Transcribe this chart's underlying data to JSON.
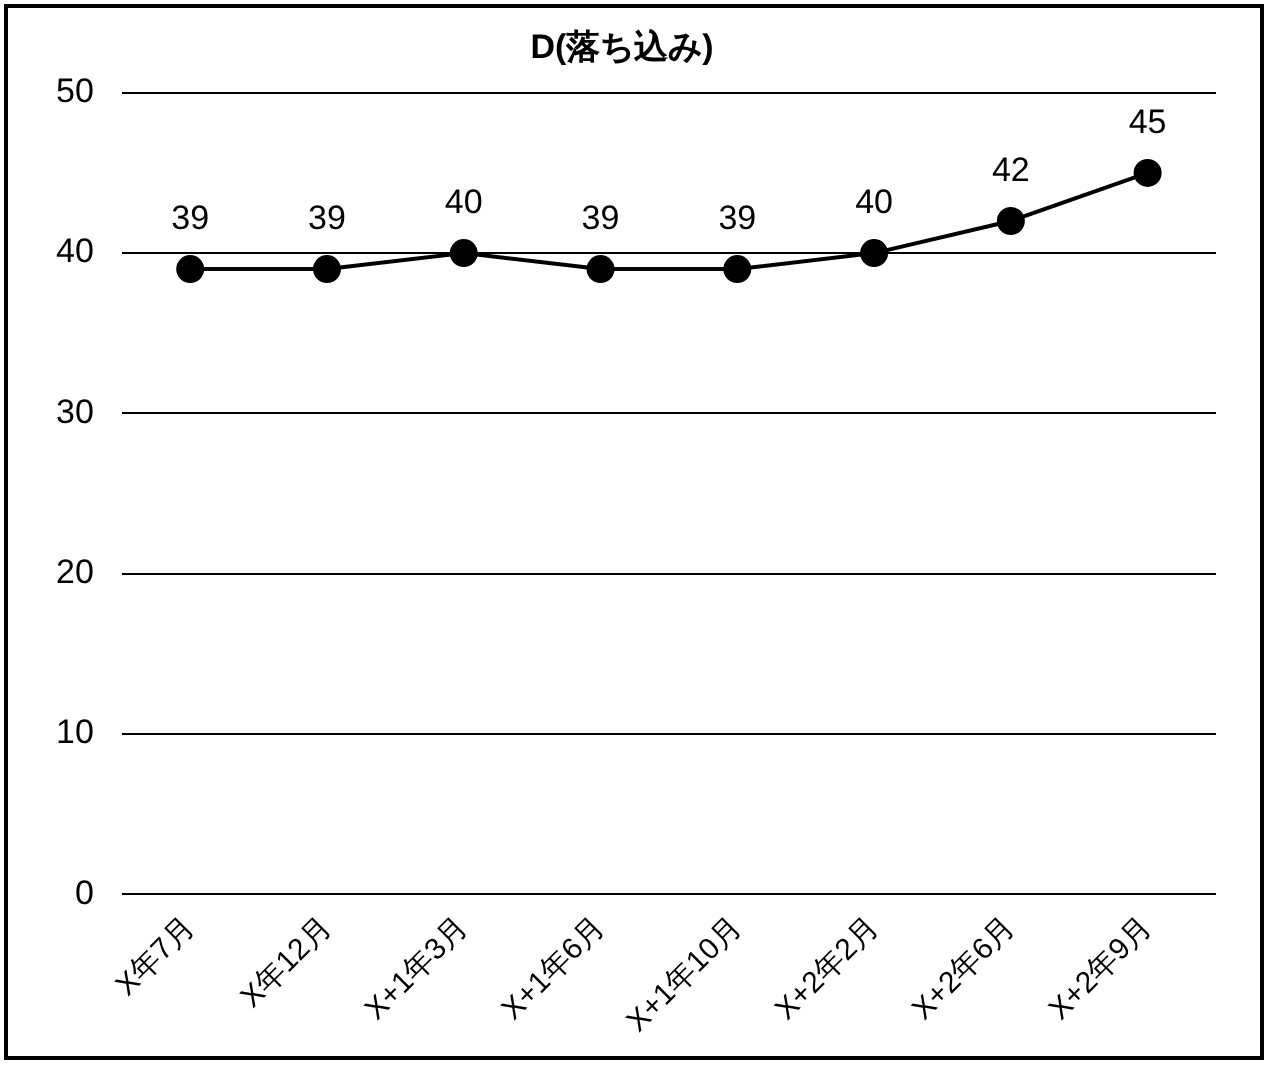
{
  "chart_data": {
    "type": "line",
    "title": "D(落ち込み)",
    "categories": [
      "X年7月",
      "X年12月",
      "X+1年3月",
      "X+1年6月",
      "X+1年10月",
      "X+2年2月",
      "X+2年6月",
      "X+2年9月"
    ],
    "series": [
      {
        "color": "#000000",
        "values": [
          39,
          39,
          40,
          39,
          39,
          40,
          42,
          45
        ]
      }
    ],
    "ylim": [
      0,
      50
    ],
    "yticks": [
      0,
      10,
      20,
      30,
      40,
      50
    ],
    "grid": "y",
    "legend": false,
    "marker": "circle",
    "line_style": "solid",
    "data_labels": true
  }
}
